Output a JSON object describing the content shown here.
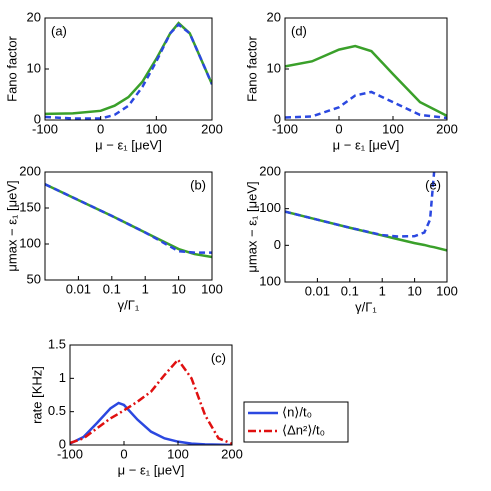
{
  "chart_data": [
    {
      "type": "line",
      "panel_label": "(a)",
      "xlabel": "μ − ε₁ [μeV]",
      "ylabel": "Fano factor",
      "x": [
        -100,
        -50,
        0,
        25,
        50,
        75,
        100,
        125,
        140,
        160,
        180,
        200
      ],
      "series": [
        {
          "color": "#3aa02a",
          "style": "solid",
          "values": [
            1.2,
            1.3,
            1.8,
            2.8,
            4.5,
            7.5,
            12,
            17,
            19,
            17,
            12,
            7
          ]
        },
        {
          "color": "#2b48e0",
          "style": "dashed",
          "values": [
            0.6,
            0.3,
            0.3,
            1.0,
            2.8,
            6.5,
            11.5,
            17,
            18.7,
            17,
            12,
            7
          ]
        }
      ],
      "xlim": [
        -100,
        200
      ],
      "xticks": [
        -100,
        0,
        100,
        200
      ],
      "ylim": [
        0,
        20
      ],
      "yticks": [
        0,
        10,
        20
      ]
    },
    {
      "type": "line",
      "panel_label": "(d)",
      "xlabel": "μ − ε₁ [μeV]",
      "ylabel": "Fano factor",
      "x": [
        -100,
        -50,
        0,
        30,
        60,
        100,
        150,
        200
      ],
      "series": [
        {
          "color": "#3aa02a",
          "style": "solid",
          "values": [
            10.5,
            11.5,
            13.8,
            14.5,
            13.5,
            9,
            3.5,
            0.8
          ]
        },
        {
          "color": "#2b48e0",
          "style": "dashed",
          "values": [
            0.5,
            0.7,
            2.5,
            4.8,
            5.5,
            3.5,
            1,
            0.4
          ]
        }
      ],
      "xlim": [
        -100,
        200
      ],
      "xticks": [
        -100,
        0,
        100,
        200
      ],
      "ylim": [
        0,
        20
      ],
      "yticks": [
        0,
        10,
        20
      ]
    },
    {
      "type": "line",
      "panel_label": "(b)",
      "xlabel": "γ/Γ₁",
      "ylabel": "μmax − ε₁ [μeV]",
      "xscale": "log",
      "x": [
        0.001,
        0.01,
        0.1,
        1,
        10,
        30,
        100
      ],
      "series": [
        {
          "color": "#3aa02a",
          "style": "solid",
          "values": [
            183,
            161,
            139,
            116,
            93,
            86,
            82
          ]
        },
        {
          "color": "#2b48e0",
          "style": "dashed",
          "values": [
            183,
            161,
            139,
            116,
            90,
            88,
            88
          ]
        }
      ],
      "xlim": [
        0.001,
        100
      ],
      "xticks": [
        0.01,
        0.1,
        1,
        10,
        100
      ],
      "ylim": [
        50,
        200
      ],
      "yticks": [
        50,
        100,
        150,
        200
      ]
    },
    {
      "type": "line",
      "panel_label": "(e)",
      "xlabel": "γ/Γ₁",
      "ylabel": "μmax − ε₁ [μeV]",
      "xscale": "log",
      "x": [
        0.001,
        0.01,
        0.1,
        1,
        3,
        10,
        20,
        30,
        40,
        100
      ],
      "series": [
        {
          "color": "#3aa02a",
          "style": "solid",
          "values": [
            92,
            70,
            48,
            27,
            17,
            6,
            1,
            -3,
            -5,
            -14
          ]
        },
        {
          "color": "#2b48e0",
          "style": "dashed",
          "values": [
            92,
            70,
            48,
            28,
            24,
            25,
            35,
            70,
            200,
            null
          ]
        }
      ],
      "xlim": [
        0.001,
        100
      ],
      "xticks": [
        0.01,
        0.1,
        1,
        10,
        100
      ],
      "ylim": [
        -100,
        200
      ],
      "yticks": [
        200,
        100,
        0,
        {
          "value": -100,
          "label": "100"
        }
      ]
    },
    {
      "type": "line",
      "panel_label": "(c)",
      "xlabel": "μ − ε₁ [μeV]",
      "ylabel": "rate [KHz]",
      "legend": "right",
      "x": [
        -100,
        -75,
        -50,
        -25,
        -10,
        0,
        25,
        50,
        75,
        100,
        125,
        150,
        175,
        200
      ],
      "series": [
        {
          "name": "⟨n⟩/t₀",
          "color": "#2b48e0",
          "style": "solid",
          "values": [
            0.02,
            0.12,
            0.33,
            0.55,
            0.63,
            0.6,
            0.38,
            0.2,
            0.1,
            0.05,
            0.02,
            0.01,
            0.005,
            0
          ]
        },
        {
          "name": "⟨Δn²⟩/t₀",
          "color": "#e01010",
          "style": "dashdot",
          "values": [
            0.03,
            0.1,
            0.25,
            0.4,
            0.47,
            0.52,
            0.65,
            0.8,
            1.05,
            1.28,
            1.0,
            0.45,
            0.1,
            0.02
          ]
        }
      ],
      "xlim": [
        -100,
        200
      ],
      "xticks": [
        -100,
        0,
        100,
        200
      ],
      "ylim": [
        0,
        1.5
      ],
      "yticks": [
        0,
        0.5,
        1,
        1.5
      ]
    }
  ]
}
